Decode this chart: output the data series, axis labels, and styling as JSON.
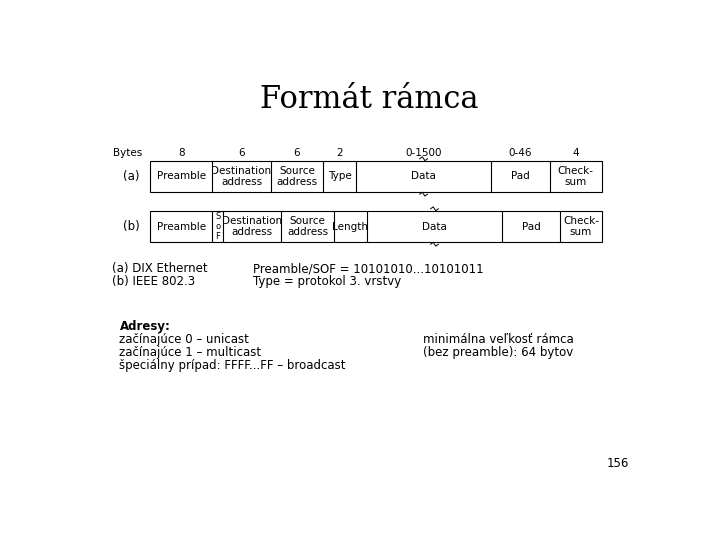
{
  "title": "Formát rámca",
  "title_fontsize": 22,
  "background_color": "#ffffff",
  "frame_a_label": "(a)",
  "frame_b_label": "(b)",
  "bytes_label": "Bytes",
  "bytes_values": [
    "8",
    "6",
    "6",
    "2",
    "0-1500",
    "0-46",
    "4"
  ],
  "row_a_cells": [
    "Preamble",
    "Destination\naddress",
    "Source\naddress",
    "Type",
    "Data",
    "Pad",
    "Check-\nsum"
  ],
  "row_b_cells": [
    "Preamble",
    "S\no\nF",
    "Destination\naddress",
    "Source\naddress",
    "Length",
    "Data",
    "Pad",
    "Check-\nsum"
  ],
  "note_left_1": "(a) DIX Ethernet",
  "note_left_2": "(b) IEEE 802.3",
  "note_right_1": "Preamble/SOF = 10101010...10101011",
  "note_right_2": "Type = protokol 3. vrstvy",
  "addr_title": "Adresy:",
  "addr_line1": "začínajúce 0 – unicast",
  "addr_line2": "začínajúce 1 – multicast",
  "addr_line3": "špeciálny prípad: FFFF...FF – broadcast",
  "min_size_1": "minimálna veľkosť rámca",
  "min_size_2": "(bez preamble): 64 bytov",
  "page_num": "156",
  "table_font_size": 7.5,
  "label_font_size": 8.5,
  "note_font_size": 8.5,
  "bytes_font_size": 7.5
}
